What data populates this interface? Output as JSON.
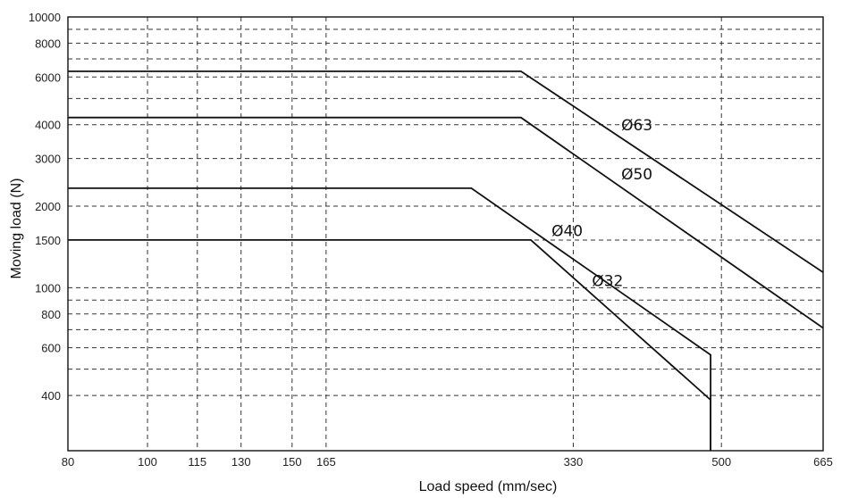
{
  "chart_data": {
    "type": "line",
    "xlabel": "Load speed (mm/sec)",
    "ylabel": "Moving load (N)",
    "x_scale": "log",
    "y_scale": "log",
    "xlim": [
      80,
      665
    ],
    "ylim": [
      250,
      10000
    ],
    "x_ticks": [
      80,
      100,
      115,
      130,
      150,
      165,
      330,
      500,
      665
    ],
    "x_tick_labels": [
      "80",
      "100",
      "115",
      "130",
      "150",
      "165",
      "330",
      "500",
      "665"
    ],
    "y_major_ticks": [
      400,
      600,
      800,
      1000,
      1500,
      2000,
      3000,
      4000,
      6000,
      8000,
      10000
    ],
    "y_tick_labels": [
      "400",
      "600",
      "800",
      "1000",
      "1500",
      "2000",
      "3000",
      "4000",
      "6000",
      "8000",
      "10000"
    ],
    "y_minor_gridlines": [
      500,
      700,
      900,
      5000,
      7000,
      9000
    ],
    "grid": true,
    "series": [
      {
        "name": "Ø63",
        "points": [
          [
            80,
            6300
          ],
          [
            285,
            6300
          ],
          [
            665,
            1140
          ]
        ]
      },
      {
        "name": "Ø50",
        "points": [
          [
            80,
            4250
          ],
          [
            285,
            4250
          ],
          [
            665,
            710
          ]
        ]
      },
      {
        "name": "Ø40",
        "points": [
          [
            80,
            2330
          ],
          [
            248,
            2330
          ],
          [
            485,
            565
          ],
          [
            485,
            250
          ]
        ]
      },
      {
        "name": "Ø32",
        "points": [
          [
            80,
            1500
          ],
          [
            293,
            1500
          ],
          [
            485,
            385
          ],
          [
            485,
            250
          ]
        ]
      }
    ]
  }
}
